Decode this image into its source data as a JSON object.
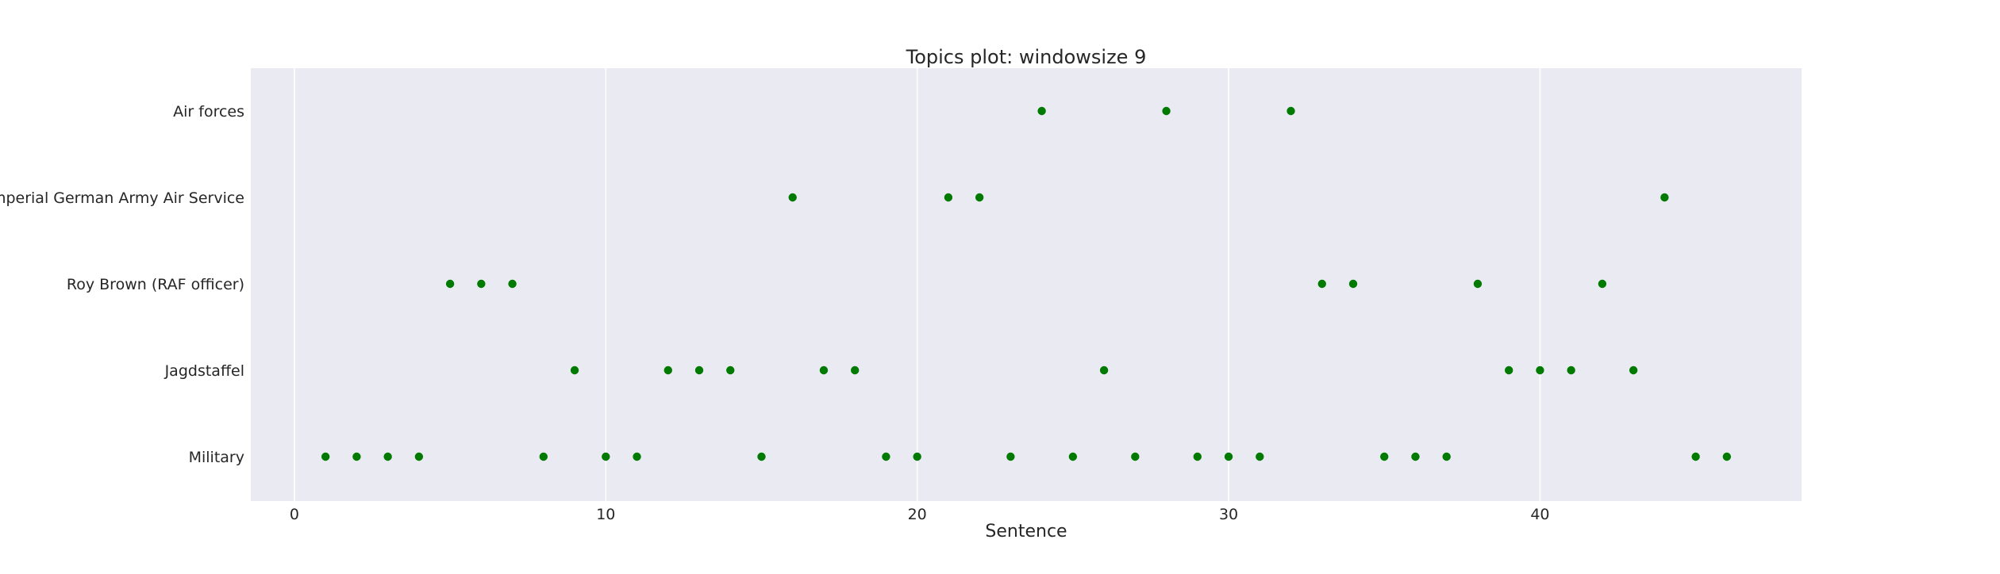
{
  "chart_data": {
    "type": "scatter",
    "title": "Topics plot: windowsize 9",
    "xlabel": "Sentence",
    "ylabel": "",
    "xlim": [
      -1.4,
      48.4
    ],
    "x_ticks": [
      "0",
      "10",
      "20",
      "30",
      "40"
    ],
    "x_tick_values": [
      0,
      10,
      20,
      30,
      40
    ],
    "categories": [
      "Military",
      "Jagdstaffel",
      "Roy Brown (RAF officer)",
      "Imperial German Army Air Service",
      "Air forces"
    ],
    "grid": true,
    "grid_axis": "x",
    "background_color": "#eaeaf2",
    "grid_color": "#ffffff",
    "marker_color": "#007a00",
    "points": [
      {
        "x": 1,
        "y": "Military"
      },
      {
        "x": 2,
        "y": "Military"
      },
      {
        "x": 3,
        "y": "Military"
      },
      {
        "x": 4,
        "y": "Military"
      },
      {
        "x": 5,
        "y": "Roy Brown (RAF officer)"
      },
      {
        "x": 6,
        "y": "Roy Brown (RAF officer)"
      },
      {
        "x": 7,
        "y": "Roy Brown (RAF officer)"
      },
      {
        "x": 8,
        "y": "Military"
      },
      {
        "x": 9,
        "y": "Jagdstaffel"
      },
      {
        "x": 10,
        "y": "Military"
      },
      {
        "x": 11,
        "y": "Military"
      },
      {
        "x": 12,
        "y": "Jagdstaffel"
      },
      {
        "x": 13,
        "y": "Jagdstaffel"
      },
      {
        "x": 14,
        "y": "Jagdstaffel"
      },
      {
        "x": 15,
        "y": "Military"
      },
      {
        "x": 16,
        "y": "Imperial German Army Air Service"
      },
      {
        "x": 17,
        "y": "Jagdstaffel"
      },
      {
        "x": 18,
        "y": "Jagdstaffel"
      },
      {
        "x": 19,
        "y": "Military"
      },
      {
        "x": 20,
        "y": "Military"
      },
      {
        "x": 21,
        "y": "Imperial German Army Air Service"
      },
      {
        "x": 22,
        "y": "Imperial German Army Air Service"
      },
      {
        "x": 23,
        "y": "Military"
      },
      {
        "x": 24,
        "y": "Air forces"
      },
      {
        "x": 25,
        "y": "Military"
      },
      {
        "x": 26,
        "y": "Jagdstaffel"
      },
      {
        "x": 27,
        "y": "Military"
      },
      {
        "x": 28,
        "y": "Air forces"
      },
      {
        "x": 29,
        "y": "Military"
      },
      {
        "x": 30,
        "y": "Military"
      },
      {
        "x": 31,
        "y": "Military"
      },
      {
        "x": 32,
        "y": "Air forces"
      },
      {
        "x": 33,
        "y": "Roy Brown (RAF officer)"
      },
      {
        "x": 34,
        "y": "Roy Brown (RAF officer)"
      },
      {
        "x": 35,
        "y": "Military"
      },
      {
        "x": 36,
        "y": "Military"
      },
      {
        "x": 37,
        "y": "Military"
      },
      {
        "x": 38,
        "y": "Roy Brown (RAF officer)"
      },
      {
        "x": 39,
        "y": "Jagdstaffel"
      },
      {
        "x": 40,
        "y": "Jagdstaffel"
      },
      {
        "x": 41,
        "y": "Jagdstaffel"
      },
      {
        "x": 42,
        "y": "Roy Brown (RAF officer)"
      },
      {
        "x": 43,
        "y": "Jagdstaffel"
      },
      {
        "x": 44,
        "y": "Imperial German Army Air Service"
      },
      {
        "x": 45,
        "y": "Military"
      },
      {
        "x": 46,
        "y": "Military"
      }
    ]
  }
}
